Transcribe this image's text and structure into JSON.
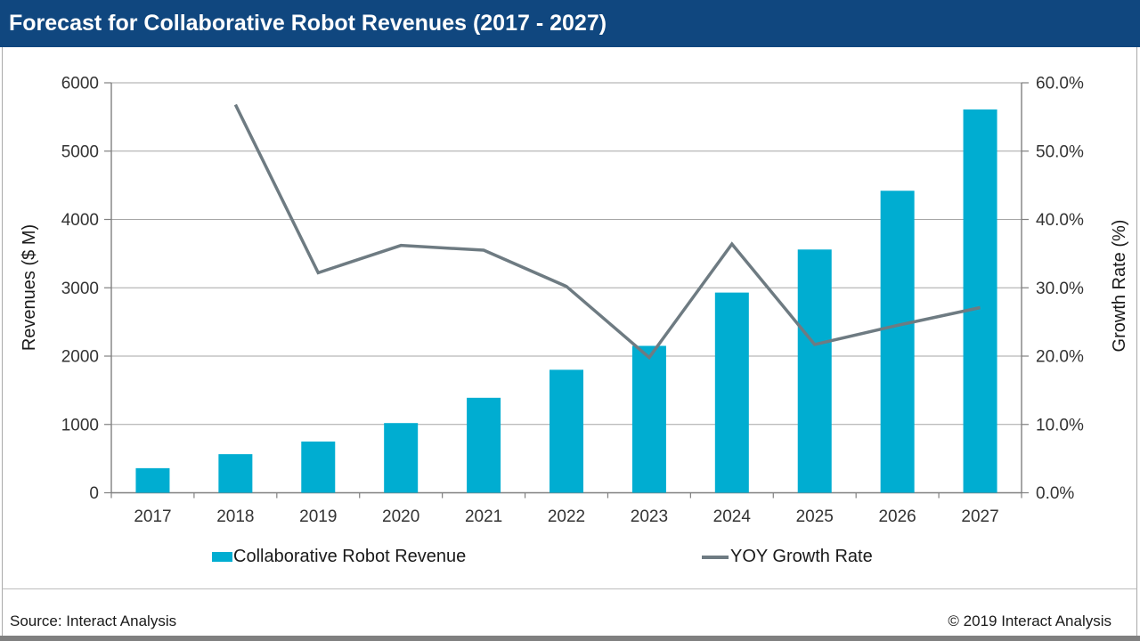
{
  "header": {
    "title": "Forecast for Collaborative Robot Revenues (2017 - 2027)",
    "bg_color": "#10477F"
  },
  "chart_data": {
    "type": "bar",
    "subtype": "combo-bar-line-dual-axis",
    "categories": [
      "2017",
      "2018",
      "2019",
      "2020",
      "2021",
      "2022",
      "2023",
      "2024",
      "2025",
      "2026",
      "2027"
    ],
    "series": [
      {
        "name": "Collaborative Robot Revenue",
        "type": "bar",
        "axis": "left",
        "color": "#00ADD1",
        "values": [
          360,
          565,
          750,
          1020,
          1390,
          1800,
          2150,
          2930,
          3560,
          4420,
          5610
        ]
      },
      {
        "name": "YOY Growth Rate",
        "type": "line",
        "axis": "right",
        "color": "#6E7B82",
        "values": [
          null,
          56.8,
          32.2,
          36.2,
          35.5,
          30.2,
          19.8,
          36.4,
          21.7,
          24.5,
          27.1
        ]
      }
    ],
    "left_axis": {
      "title": "Revenues ($ M)",
      "min": 0,
      "max": 6000,
      "step": 1000,
      "ticks": [
        "6000",
        "5000",
        "4000",
        "3000",
        "2000",
        "1000",
        "0"
      ]
    },
    "right_axis": {
      "title": "Growth Rate (%)",
      "min": 0,
      "max": 60,
      "step": 10,
      "ticks": [
        "60.0%",
        "50.0%",
        "40.0%",
        "30.0%",
        "20.0%",
        "10.0%",
        "0.0%"
      ]
    },
    "grid": true,
    "legend_position": "bottom",
    "grid_color": "#A6A6A6",
    "axis_color": "#808080",
    "tick_label_color": "#333333"
  },
  "legend": {
    "items": [
      {
        "label": "Collaborative Robot Revenue",
        "swatch": "bar-swatch",
        "color": "#00ADD1"
      },
      {
        "label": "YOY Growth Rate",
        "swatch": "line-swatch",
        "color": "#6E7B82"
      }
    ]
  },
  "footer": {
    "source": "Source: Interact Analysis",
    "copyright": "© 2019 Interact Analysis"
  }
}
